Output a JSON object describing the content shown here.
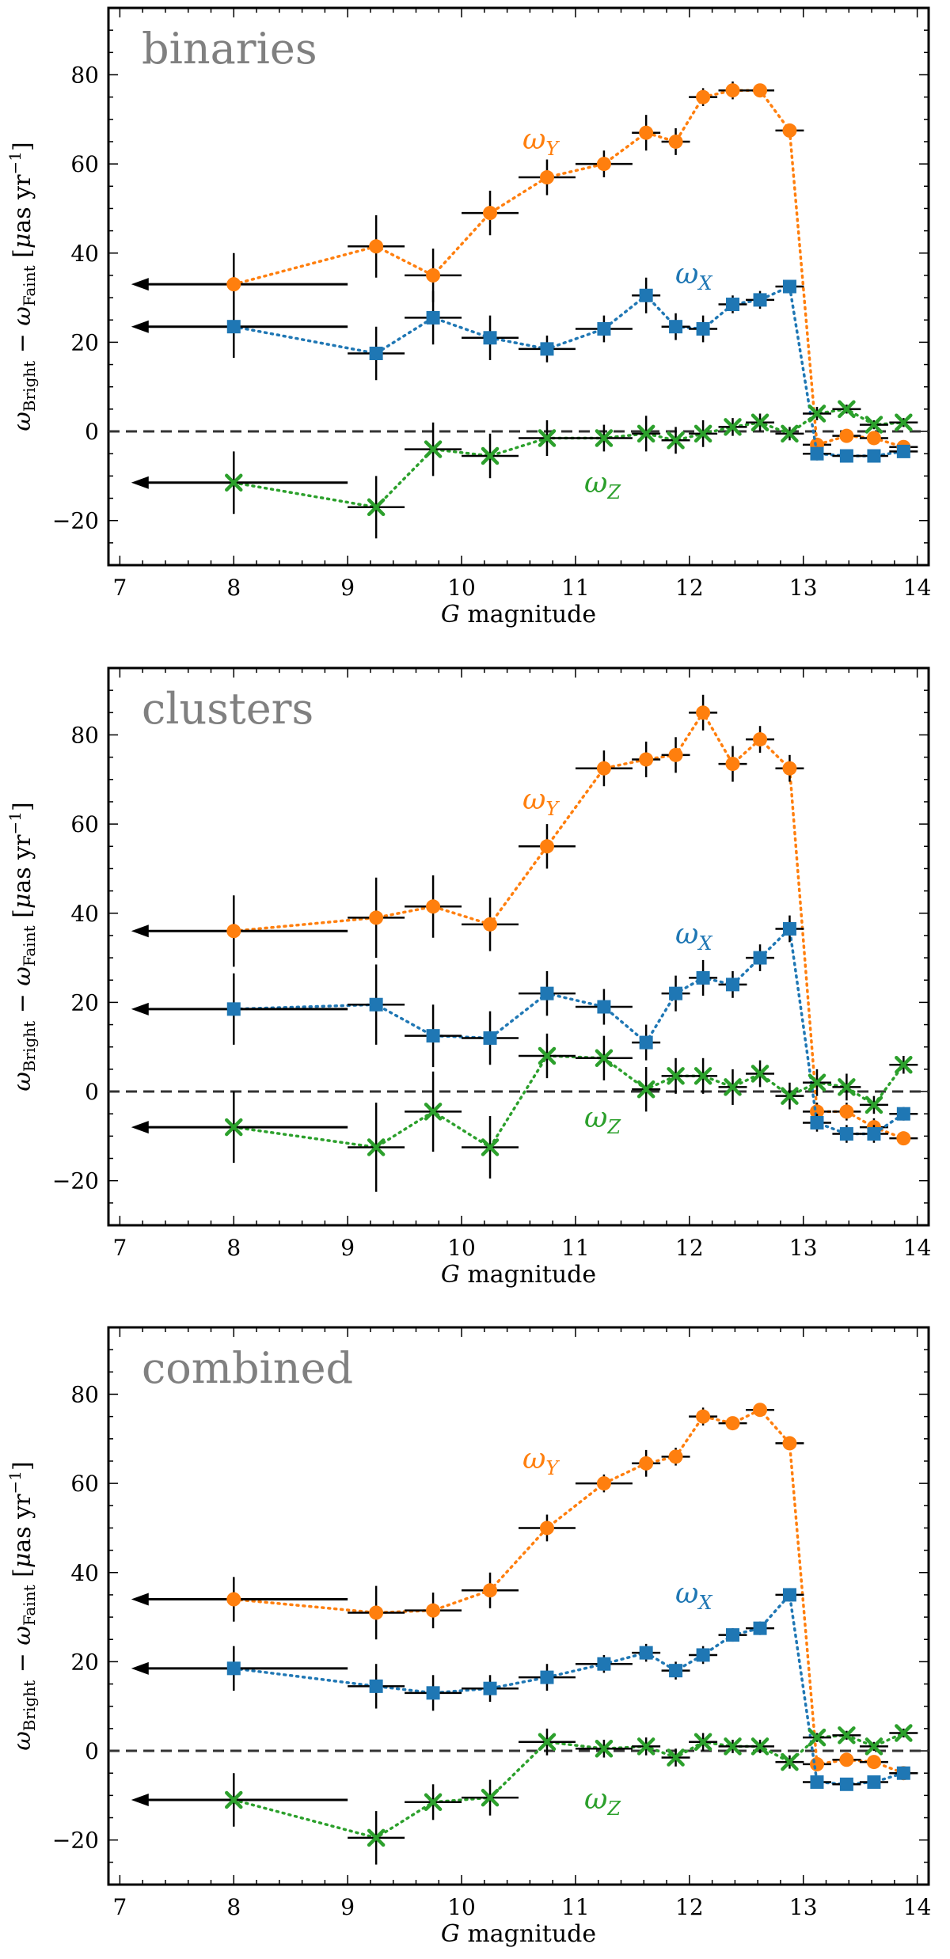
{
  "figure": {
    "xlabel_italic": "G",
    "xlabel_rest": " magnitude",
    "ylabel": {
      "omega": "ω",
      "bright_sub": "Bright",
      "minus": " − ",
      "faint_sub": "Faint",
      "unit_open": " [",
      "mu": "μ",
      "unit_main": "as yr",
      "unit_exp": "−1",
      "unit_close": "]"
    },
    "series_labels": [
      {
        "key": "Y",
        "omega": "ω",
        "sub": "Y",
        "color": "#ff7f0e"
      },
      {
        "key": "X",
        "omega": "ω",
        "sub": "X",
        "color": "#1f77b4"
      },
      {
        "key": "Z",
        "omega": "ω",
        "sub": "Z",
        "color": "#2ca02c"
      }
    ],
    "colors": {
      "Y": "#ff7f0e",
      "X": "#1f77b4",
      "Z": "#2ca02c",
      "errorbar": "#000000",
      "panel_title": "#808080",
      "zero_line": "#333333"
    }
  },
  "chart_data": [
    {
      "type": "scatter",
      "title": "binaries",
      "xlabel": "G magnitude",
      "ylabel": "ωBright − ωFaint [μas yr−1]",
      "xlim": [
        6.9,
        14.1
      ],
      "ylim": [
        -30,
        95
      ],
      "xticks": [
        7,
        8,
        9,
        10,
        11,
        12,
        13,
        14
      ],
      "yticks": [
        -20,
        0,
        20,
        40,
        60,
        80
      ],
      "x": [
        8.0,
        9.25,
        9.75,
        10.25,
        10.75,
        11.25,
        11.62,
        11.88,
        12.12,
        12.38,
        12.62,
        12.88,
        13.12,
        13.38,
        13.62,
        13.88
      ],
      "xerr": [
        0,
        0.25,
        0.25,
        0.25,
        0.25,
        0.25,
        0.125,
        0.125,
        0.125,
        0.125,
        0.125,
        0.125,
        0.125,
        0.125,
        0.125,
        0.125
      ],
      "upper_limit_first": true,
      "arrow_from": 9.0,
      "arrow_to": 7.1,
      "series": [
        {
          "name": "ωY",
          "key": "Y",
          "marker": "circle",
          "values": [
            33,
            41.5,
            35,
            49,
            57,
            60,
            67,
            65,
            75,
            76.5,
            76.5,
            67.5,
            -3,
            -1,
            -1.5,
            -3.5
          ],
          "yerr": [
            7,
            7,
            6,
            5,
            4,
            3,
            4,
            3,
            2,
            2,
            1.5,
            1.5,
            1.5,
            1,
            1,
            1
          ]
        },
        {
          "name": "ωX",
          "key": "X",
          "marker": "square",
          "values": [
            23.5,
            17.5,
            25.5,
            21,
            18.5,
            23,
            30.5,
            23.5,
            23,
            28.5,
            29.5,
            32.5,
            -5,
            -5.5,
            -5.5,
            -4.5
          ],
          "yerr": [
            7,
            6,
            6,
            5,
            3,
            3,
            4,
            3,
            3,
            2,
            2,
            1.5,
            1.5,
            1,
            1,
            1
          ]
        },
        {
          "name": "ωZ",
          "key": "Z",
          "marker": "x",
          "values": [
            -11.5,
            -17,
            -4,
            -5.5,
            -1.5,
            -1.5,
            -0.5,
            -2,
            -0.5,
            1,
            2,
            -0.5,
            4,
            5,
            1.5,
            2
          ],
          "yerr": [
            7,
            7,
            6,
            5,
            4,
            3,
            4,
            3,
            3,
            2,
            2,
            1.5,
            1.5,
            1,
            1,
            1
          ]
        }
      ]
    },
    {
      "type": "scatter",
      "title": "clusters",
      "xlabel": "G magnitude",
      "ylabel": "ωBright − ωFaint [μas yr−1]",
      "xlim": [
        6.9,
        14.1
      ],
      "ylim": [
        -30,
        95
      ],
      "xticks": [
        7,
        8,
        9,
        10,
        11,
        12,
        13,
        14
      ],
      "yticks": [
        -20,
        0,
        20,
        40,
        60,
        80
      ],
      "x": [
        8.0,
        9.25,
        9.75,
        10.25,
        10.75,
        11.25,
        11.62,
        11.88,
        12.12,
        12.38,
        12.62,
        12.88,
        13.12,
        13.38,
        13.62,
        13.88
      ],
      "xerr": [
        0,
        0.25,
        0.25,
        0.25,
        0.25,
        0.25,
        0.125,
        0.125,
        0.125,
        0.125,
        0.125,
        0.125,
        0.125,
        0.125,
        0.125,
        0.125
      ],
      "upper_limit_first": true,
      "arrow_from": 9.0,
      "arrow_to": 7.1,
      "series": [
        {
          "name": "ωY",
          "key": "Y",
          "marker": "circle",
          "values": [
            36,
            39,
            41.5,
            37.5,
            55,
            72.5,
            74.5,
            75.5,
            85,
            73.5,
            79,
            72.5,
            -4.5,
            -4.5,
            -8,
            -10.5
          ],
          "yerr": [
            8,
            9,
            7,
            6,
            5,
            4,
            4,
            4,
            4,
            4,
            3,
            3,
            2,
            2,
            2,
            1.5
          ]
        },
        {
          "name": "ωX",
          "key": "X",
          "marker": "square",
          "values": [
            18.5,
            19.5,
            12.5,
            12,
            22,
            19,
            11,
            22,
            25.5,
            24,
            30,
            36.5,
            -7,
            -9.5,
            -9.5,
            -5
          ],
          "yerr": [
            8,
            9,
            7,
            6,
            5,
            4,
            4,
            4,
            4,
            3,
            3,
            3,
            2,
            2,
            2,
            1.5
          ]
        },
        {
          "name": "ωZ",
          "key": "Z",
          "marker": "x",
          "values": [
            -8,
            -12.5,
            -4.5,
            -12.5,
            8,
            7.5,
            0.5,
            3.5,
            3.5,
            1,
            4,
            -1,
            2,
            1,
            -3,
            6
          ],
          "yerr": [
            8,
            10,
            9,
            7,
            5,
            5,
            5,
            4,
            4,
            4,
            3,
            3,
            3,
            3,
            2,
            2
          ]
        }
      ]
    },
    {
      "type": "scatter",
      "title": "combined",
      "xlabel": "G magnitude",
      "ylabel": "ωBright − ωFaint [μas yr−1]",
      "xlim": [
        6.9,
        14.1
      ],
      "ylim": [
        -30,
        95
      ],
      "xticks": [
        7,
        8,
        9,
        10,
        11,
        12,
        13,
        14
      ],
      "yticks": [
        -20,
        0,
        20,
        40,
        60,
        80
      ],
      "x": [
        8.0,
        9.25,
        9.75,
        10.25,
        10.75,
        11.25,
        11.62,
        11.88,
        12.12,
        12.38,
        12.62,
        12.88,
        13.12,
        13.38,
        13.62,
        13.88
      ],
      "xerr": [
        0,
        0.25,
        0.25,
        0.25,
        0.25,
        0.25,
        0.125,
        0.125,
        0.125,
        0.125,
        0.125,
        0.125,
        0.125,
        0.125,
        0.125,
        0.125
      ],
      "upper_limit_first": true,
      "arrow_from": 9.0,
      "arrow_to": 7.1,
      "series": [
        {
          "name": "ωY",
          "key": "Y",
          "marker": "circle",
          "values": [
            34,
            31,
            31.5,
            36,
            50,
            60,
            64.5,
            66,
            75,
            73.5,
            76.5,
            69,
            -3,
            -2,
            -2.5,
            -5
          ],
          "yerr": [
            5,
            6,
            4,
            4,
            3,
            2,
            3,
            2,
            2,
            1.5,
            1.5,
            1.5,
            1,
            1,
            1,
            1
          ]
        },
        {
          "name": "ωX",
          "key": "X",
          "marker": "square",
          "values": [
            18.5,
            14.5,
            13,
            14,
            16.5,
            19.5,
            22,
            18,
            21.5,
            26,
            27.5,
            35,
            -7,
            -7.5,
            -7,
            -5
          ],
          "yerr": [
            5,
            5,
            4,
            3,
            3,
            2,
            2,
            2,
            2,
            1.5,
            1.5,
            1.5,
            1,
            1,
            1,
            1
          ]
        },
        {
          "name": "ωZ",
          "key": "Z",
          "marker": "x",
          "values": [
            -11,
            -19.5,
            -11.5,
            -10.5,
            2,
            0.5,
            1,
            -1.5,
            2,
            1,
            1,
            -2.5,
            3,
            3.5,
            1,
            4
          ],
          "yerr": [
            6,
            6,
            4,
            4,
            3,
            2,
            2,
            2,
            2,
            1.5,
            1.5,
            1.5,
            1,
            1,
            1,
            1
          ]
        }
      ]
    }
  ]
}
